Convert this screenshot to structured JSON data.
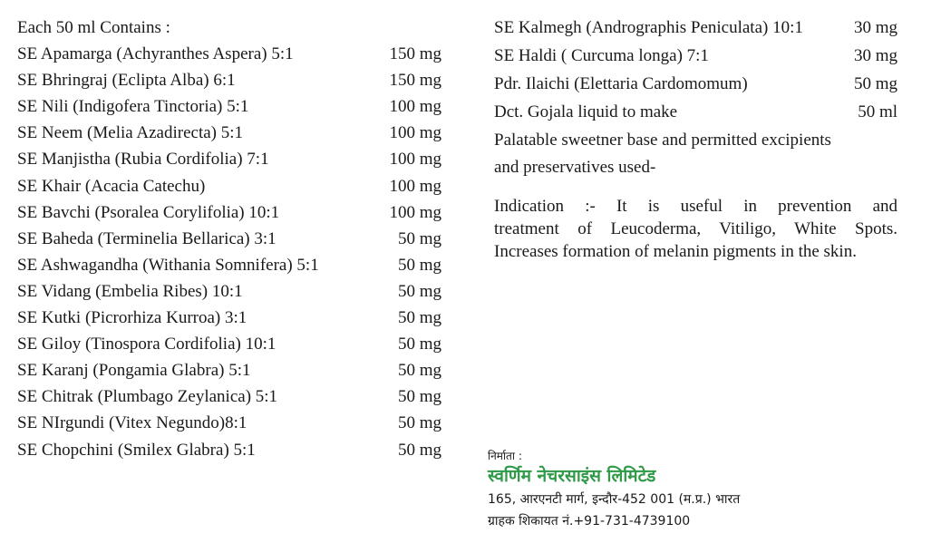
{
  "colors": {
    "text": "#1a1a1a",
    "brand_green": "#2f9a48"
  },
  "left": {
    "heading": "Each 50 ml Contains :",
    "items": [
      {
        "name": "SE Apamarga (Achyranthes Aspera) 5:1",
        "qty": "150 mg"
      },
      {
        "name": "SE Bhringraj (Eclipta Alba) 6:1",
        "qty": "150 mg"
      },
      {
        "name": "SE Nili (Indigofera Tinctoria) 5:1",
        "qty": "100 mg"
      },
      {
        "name": "SE Neem (Melia Azadirecta) 5:1",
        "qty": "100 mg"
      },
      {
        "name": "SE Manjistha (Rubia Cordifolia) 7:1",
        "qty": "100 mg"
      },
      {
        "name": "SE Khair (Acacia Catechu)",
        "qty": "100 mg"
      },
      {
        "name": "SE Bavchi (Psoralea Corylifolia) 10:1",
        "qty": "100 mg"
      },
      {
        "name": "SE Baheda (Terminelia Bellarica) 3:1",
        "qty": "50 mg"
      },
      {
        "name": "SE  Ashwagandha (Withania Somnifera) 5:1",
        "qty": "50 mg"
      },
      {
        "name": "SE Vidang (Embelia Ribes) 10:1",
        "qty": "50 mg"
      },
      {
        "name": "SE Kutki (Picrorhiza Kurroa) 3:1",
        "qty": "50 mg"
      },
      {
        "name": "SE Giloy (Tinospora Cordifolia) 10:1",
        "qty": "50 mg"
      },
      {
        "name": "SE Karanj (Pongamia Glabra) 5:1",
        "qty": "50 mg"
      },
      {
        "name": "SE Chitrak (Plumbago Zeylanica) 5:1",
        "qty": "50 mg"
      },
      {
        "name": "SE NIrgundi (Vitex Negundo)8:1",
        "qty": "50 mg"
      },
      {
        "name": "SE Chopchini (Smilex Glabra) 5:1",
        "qty": "50 mg"
      }
    ]
  },
  "right": {
    "items": [
      {
        "name": "SE Kalmegh (Andrographis Peniculata) 10:1",
        "qty": "30 mg"
      },
      {
        "name": "SE Haldi ( Curcuma longa) 7:1",
        "qty": "30 mg"
      },
      {
        "name": "Pdr. Ilaichi (Elettaria Cardomomum)",
        "qty": "50 mg"
      },
      {
        "name": "Dct. Gojala liquid  to  make",
        "qty": "50 ml"
      }
    ],
    "note_line1": "Palatable sweetner base and permitted excipients",
    "note_line2": "and preservatives used-",
    "indication_lines": [
      "Indication :- It is useful in prevention and",
      "treatment of Leucoderma, Vitiligo, White Spots.",
      "Increases formation of melanin pigments in the skin."
    ]
  },
  "manufacturer": {
    "label": "निर्माता :",
    "name": "स्वर्णिम नेचरसाइंस लिमिटेड",
    "address": "165, आरएनटी मार्ग, इन्दौर-452 001 (म.प्र.) भारत",
    "complaint": "ग्राहक शिकायत नं.+91-731-4739100"
  }
}
